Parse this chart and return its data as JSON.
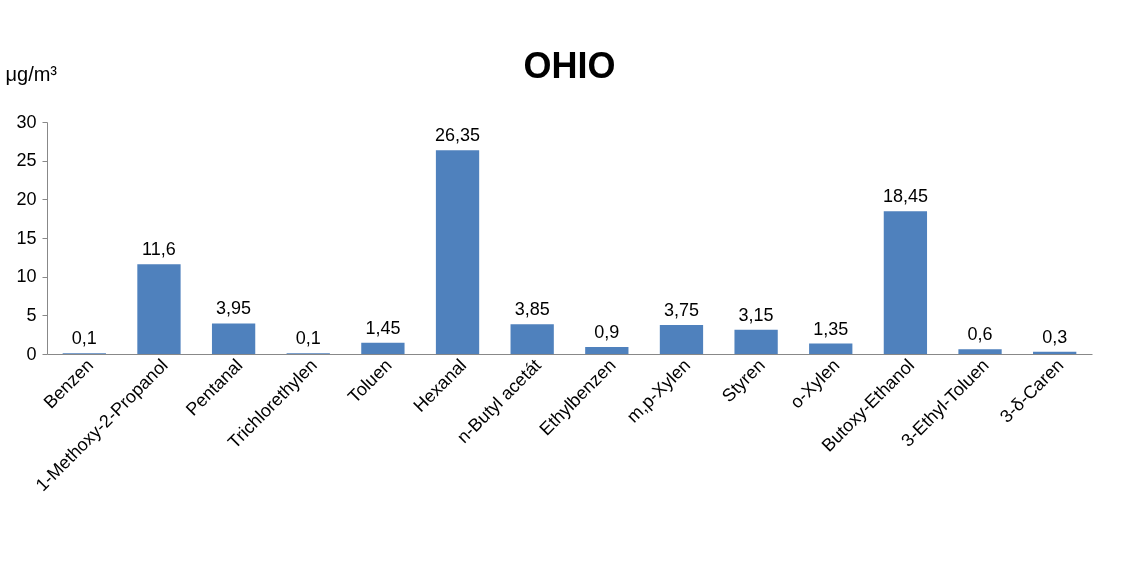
{
  "chart_data": {
    "type": "bar",
    "title": "OHIO",
    "ylabel": "μg/m³",
    "categories": [
      "Benzen",
      "1-Methoxy-2-Propanol",
      "Pentanal",
      "Trichlorethylen",
      "Toluen",
      "Hexanal",
      "n-Butyl acetát",
      "Ethylbenzen",
      "m,p-Xylen",
      "Styren",
      "o-Xylen",
      "Butoxy-Ethanol",
      "3-Ethyl-Toluen",
      "3-δ-Caren"
    ],
    "values": [
      0.1,
      11.6,
      3.95,
      0.1,
      1.45,
      26.35,
      3.85,
      0.9,
      3.75,
      3.15,
      1.35,
      18.45,
      0.6,
      0.3
    ],
    "value_labels": [
      "0,1",
      "11,6",
      "3,95",
      "0,1",
      "1,45",
      "26,35",
      "3,85",
      "0,9",
      "3,75",
      "3,15",
      "1,35",
      "18,45",
      "0,6",
      "0,3"
    ],
    "color": "#4f81bd",
    "ylim": [
      0,
      30
    ],
    "yticks": [
      0,
      5,
      10,
      15,
      20,
      25,
      30
    ],
    "grid": false
  }
}
